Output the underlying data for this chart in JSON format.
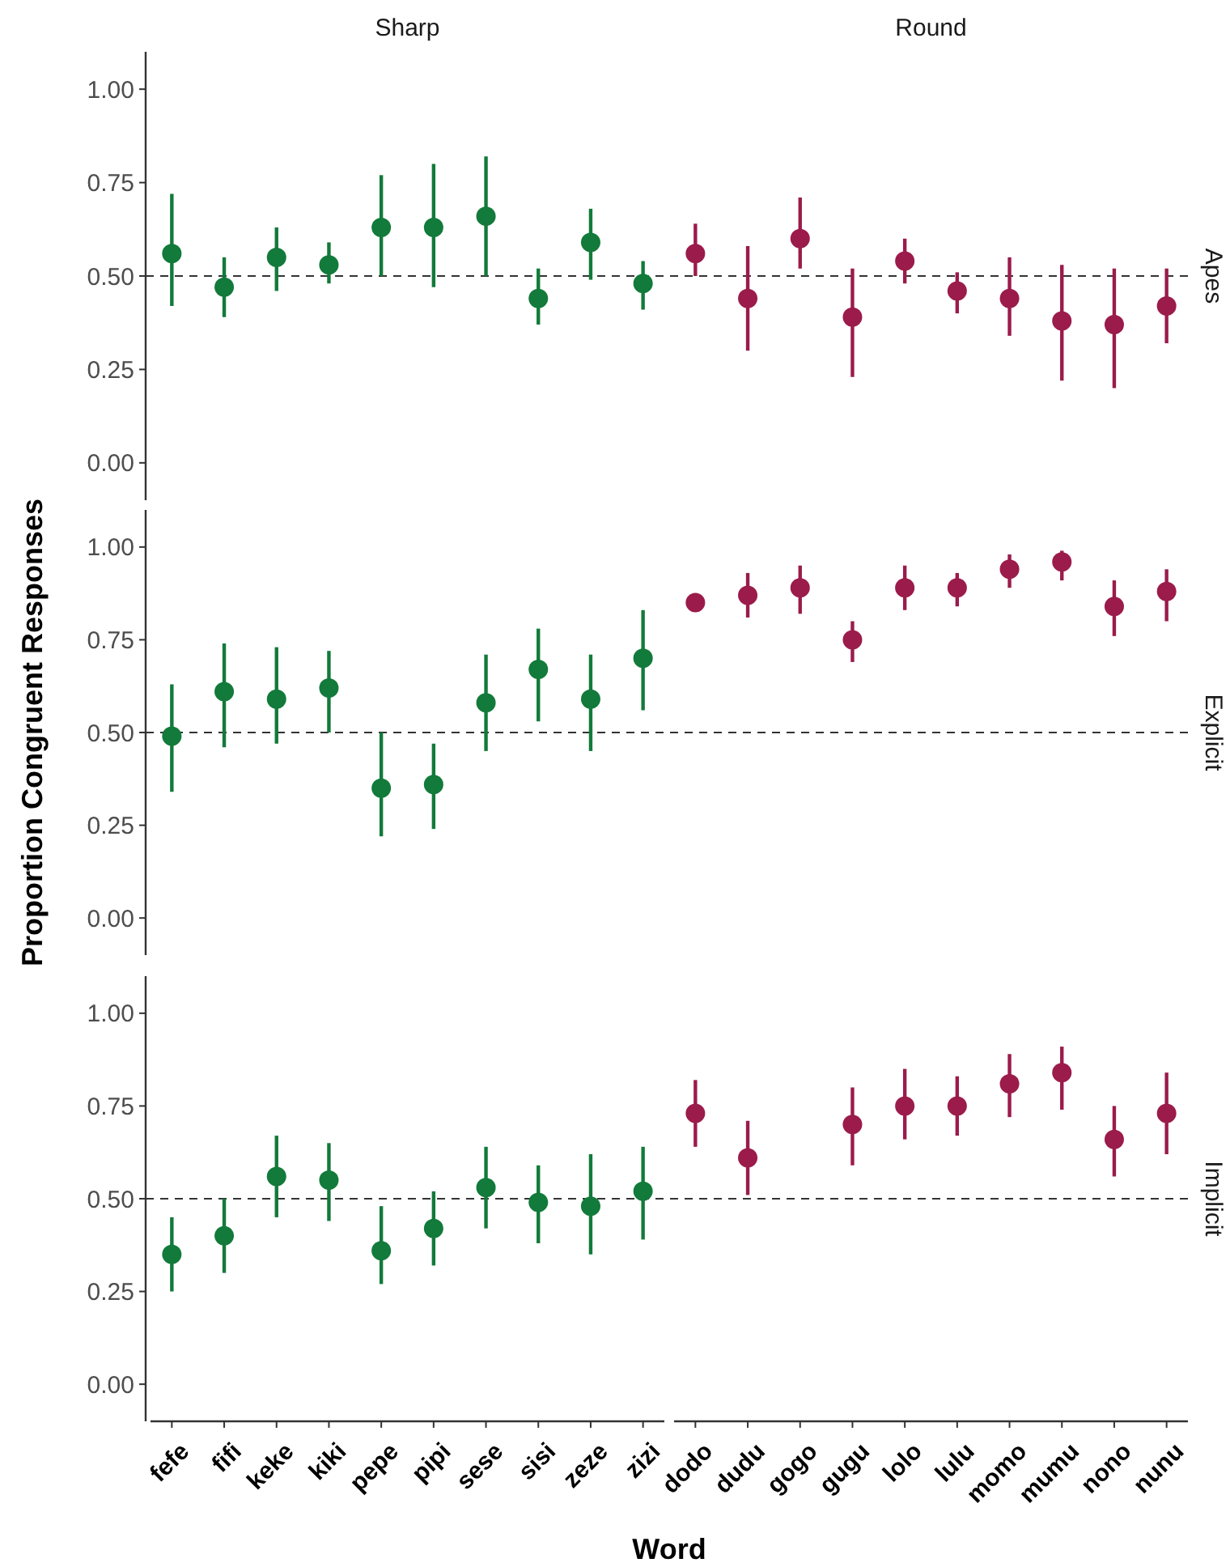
{
  "chart_data": [
    {
      "type": "scatter",
      "annotations": [
        "Sharp",
        "Round",
        "Apes"
      ],
      "categories": [
        null,
        null,
        null,
        null,
        null,
        null,
        null,
        null,
        null,
        null,
        null,
        null,
        null,
        null,
        null,
        null,
        null,
        null,
        null,
        null
      ],
      "ylim": [
        -0.1,
        1.1
      ],
      "yticks": [
        {
          "value": 0,
          "label": "0.00"
        },
        {
          "value": 0.25,
          "label": "0.25"
        },
        {
          "value": 0.5,
          "label": "0.50"
        },
        {
          "value": 0.75,
          "label": "0.75"
        },
        {
          "value": 1,
          "label": "1.00"
        }
      ],
      "tick_labels": "y",
      "marker": "circle",
      "grid": false,
      "ref_lines": [
        {
          "axis": "y",
          "value": 0.5,
          "line_style": "dashed"
        }
      ],
      "series": [
        {
          "color": "#127a3a",
          "values": [
            0.56,
            0.47,
            0.55,
            0.53,
            0.63,
            0.63,
            0.66,
            0.44,
            0.59,
            0.48,
            null,
            null,
            null,
            null,
            null,
            null,
            null,
            null,
            null,
            null
          ],
          "errors": [
            [
              0.42,
              0.72
            ],
            [
              0.39,
              0.55
            ],
            [
              0.46,
              0.63
            ],
            [
              0.48,
              0.59
            ],
            [
              0.5,
              0.77
            ],
            [
              0.47,
              0.8
            ],
            [
              0.5,
              0.82
            ],
            [
              0.37,
              0.52
            ],
            [
              0.49,
              0.68
            ],
            [
              0.41,
              0.54
            ],
            null,
            null,
            null,
            null,
            null,
            null,
            null,
            null,
            null,
            null
          ]
        },
        {
          "color": "#9b1b4b",
          "values": [
            null,
            null,
            null,
            null,
            null,
            null,
            null,
            null,
            null,
            null,
            0.56,
            0.44,
            0.6,
            0.39,
            0.54,
            0.46,
            0.44,
            0.38,
            0.37,
            0.42
          ],
          "errors": [
            null,
            null,
            null,
            null,
            null,
            null,
            null,
            null,
            null,
            null,
            [
              0.5,
              0.64
            ],
            [
              0.3,
              0.58
            ],
            [
              0.52,
              0.71
            ],
            [
              0.23,
              0.52
            ],
            [
              0.48,
              0.6
            ],
            [
              0.4,
              0.51
            ],
            [
              0.34,
              0.55
            ],
            [
              0.22,
              0.53
            ],
            [
              0.2,
              0.52
            ],
            [
              0.32,
              0.52
            ]
          ]
        }
      ]
    },
    {
      "type": "scatter",
      "ylabel": "Proportion Congruent Responses",
      "annotations": [
        "Explicit"
      ],
      "categories": [
        null,
        null,
        null,
        null,
        null,
        null,
        null,
        null,
        null,
        null,
        null,
        null,
        null,
        null,
        null,
        null,
        null,
        null,
        null,
        null
      ],
      "ylim": [
        -0.1,
        1.1
      ],
      "yticks": [
        {
          "value": 0,
          "label": "0.00"
        },
        {
          "value": 0.25,
          "label": "0.25"
        },
        {
          "value": 0.5,
          "label": "0.50"
        },
        {
          "value": 0.75,
          "label": "0.75"
        },
        {
          "value": 1,
          "label": "1.00"
        }
      ],
      "tick_labels": "y",
      "marker": "circle",
      "grid": false,
      "ref_lines": [
        {
          "axis": "y",
          "value": 0.5,
          "line_style": "dashed"
        }
      ],
      "series": [
        {
          "color": "#127a3a",
          "values": [
            0.49,
            0.61,
            0.59,
            0.62,
            0.35,
            0.36,
            0.58,
            0.67,
            0.59,
            0.7,
            null,
            null,
            null,
            null,
            null,
            null,
            null,
            null,
            null,
            null
          ],
          "errors": [
            [
              0.34,
              0.63
            ],
            [
              0.46,
              0.74
            ],
            [
              0.47,
              0.73
            ],
            [
              0.5,
              0.72
            ],
            [
              0.22,
              0.5
            ],
            [
              0.24,
              0.47
            ],
            [
              0.45,
              0.71
            ],
            [
              0.53,
              0.78
            ],
            [
              0.45,
              0.71
            ],
            [
              0.56,
              0.83
            ],
            null,
            null,
            null,
            null,
            null,
            null,
            null,
            null,
            null,
            null
          ]
        },
        {
          "color": "#9b1b4b",
          "values": [
            null,
            null,
            null,
            null,
            null,
            null,
            null,
            null,
            null,
            null,
            0.85,
            0.87,
            0.89,
            0.75,
            0.89,
            0.89,
            0.94,
            0.96,
            0.84,
            0.88
          ],
          "errors": [
            null,
            null,
            null,
            null,
            null,
            null,
            null,
            null,
            null,
            null,
            null,
            [
              0.81,
              0.93
            ],
            [
              0.82,
              0.95
            ],
            [
              0.69,
              0.8
            ],
            [
              0.83,
              0.95
            ],
            [
              0.84,
              0.93
            ],
            [
              0.89,
              0.98
            ],
            [
              0.91,
              0.99
            ],
            [
              0.76,
              0.91
            ],
            [
              0.8,
              0.94
            ]
          ]
        }
      ]
    },
    {
      "type": "scatter",
      "xlabel": "Word",
      "annotations": [
        "Implicit"
      ],
      "categories": [
        "fefe",
        "fifi",
        "keke",
        "kiki",
        "pepe",
        "pipi",
        "sese",
        "sisi",
        "zeze",
        "zizi",
        "dodo",
        "dudu",
        "gogo",
        "gugu",
        "lolo",
        "lulu",
        "momo",
        "mumu",
        "nono",
        "nunu"
      ],
      "ylim": [
        -0.1,
        1.1
      ],
      "yticks": [
        {
          "value": 0,
          "label": "0.00"
        },
        {
          "value": 0.25,
          "label": "0.25"
        },
        {
          "value": 0.5,
          "label": "0.50"
        },
        {
          "value": 0.75,
          "label": "0.75"
        },
        {
          "value": 1,
          "label": "1.00"
        }
      ],
      "marker": "circle",
      "grid": false,
      "ref_lines": [
        {
          "axis": "y",
          "value": 0.5,
          "line_style": "dashed"
        }
      ],
      "series": [
        {
          "color": "#127a3a",
          "values": [
            0.35,
            0.4,
            0.56,
            0.55,
            0.36,
            0.42,
            0.53,
            0.49,
            0.48,
            0.52,
            null,
            null,
            null,
            null,
            null,
            null,
            null,
            null,
            null,
            null
          ],
          "errors": [
            [
              0.25,
              0.45
            ],
            [
              0.3,
              0.5
            ],
            [
              0.45,
              0.67
            ],
            [
              0.44,
              0.65
            ],
            [
              0.27,
              0.48
            ],
            [
              0.32,
              0.52
            ],
            [
              0.42,
              0.64
            ],
            [
              0.38,
              0.59
            ],
            [
              0.35,
              0.62
            ],
            [
              0.39,
              0.64
            ],
            null,
            null,
            null,
            null,
            null,
            null,
            null,
            null,
            null,
            null
          ]
        },
        {
          "color": "#9b1b4b",
          "values": [
            null,
            null,
            null,
            null,
            null,
            null,
            null,
            null,
            null,
            null,
            0.73,
            0.61,
            null,
            0.7,
            0.75,
            0.75,
            0.81,
            0.84,
            0.66,
            0.73
          ],
          "errors": [
            null,
            null,
            null,
            null,
            null,
            null,
            null,
            null,
            null,
            null,
            [
              0.64,
              0.82
            ],
            [
              0.51,
              0.71
            ],
            null,
            [
              0.59,
              0.8
            ],
            [
              0.66,
              0.85
            ],
            [
              0.67,
              0.83
            ],
            [
              0.72,
              0.89
            ],
            [
              0.74,
              0.91
            ],
            [
              0.56,
              0.75
            ],
            [
              0.62,
              0.84
            ]
          ]
        }
      ]
    }
  ]
}
